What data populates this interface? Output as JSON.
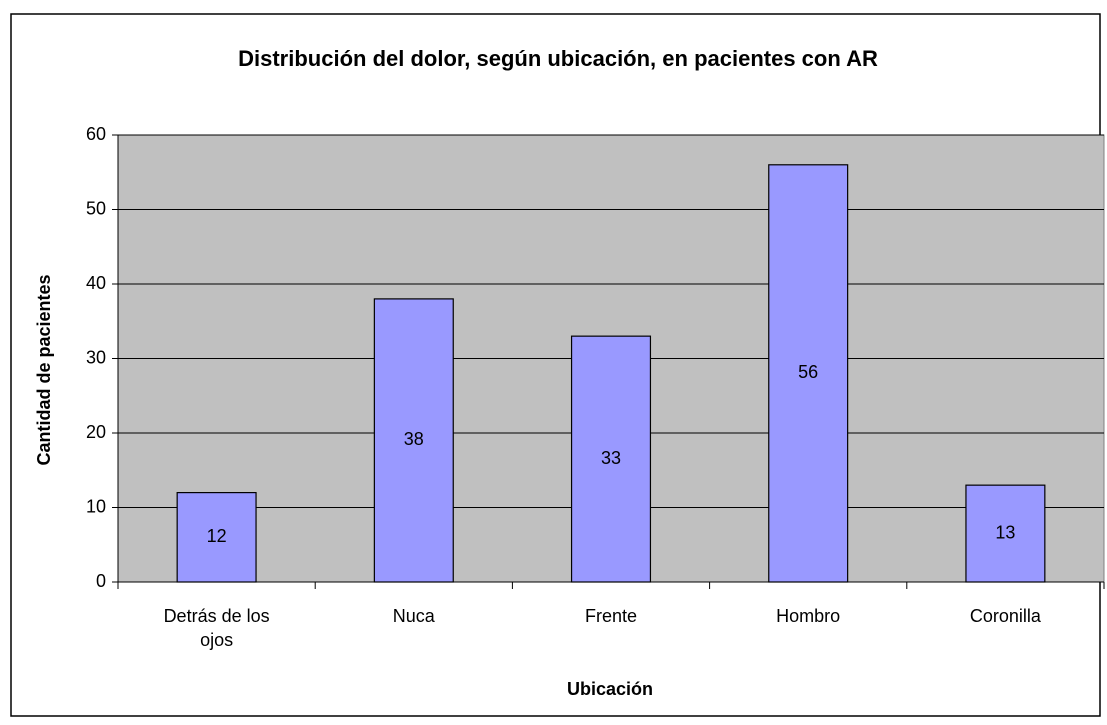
{
  "chart_data": {
    "type": "bar",
    "title": "Distribución del dolor, según ubicación, en pacientes con AR",
    "x_label": "Ubicación",
    "y_label": "Cantidad de pacientes",
    "categories": [
      "Detrás de los ojos",
      "Nuca",
      "Frente",
      "Hombro",
      "Coronilla"
    ],
    "values": [
      12,
      38,
      33,
      56,
      13
    ],
    "color": "#9999ff",
    "ylim": [
      0,
      60
    ],
    "yticks": [
      0,
      10,
      20,
      30,
      40,
      50,
      60
    ],
    "grid": true
  }
}
